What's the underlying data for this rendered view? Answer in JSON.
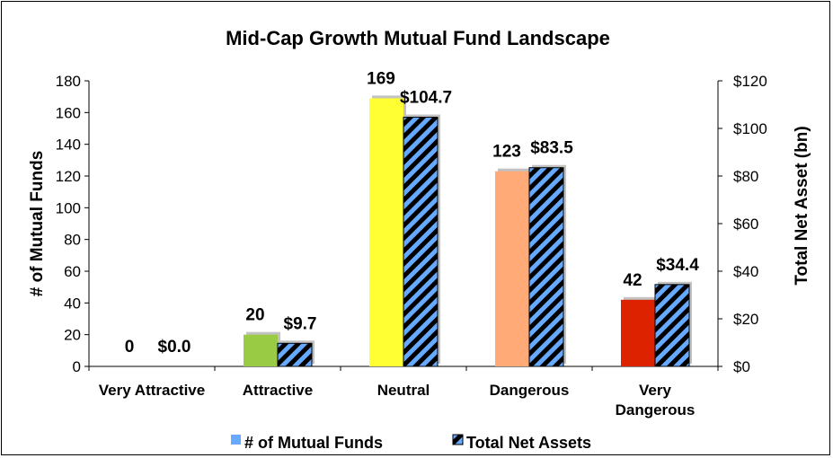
{
  "chart_data": {
    "type": "bar",
    "title": "Mid-Cap Growth Mutual Fund Landscape",
    "categories": [
      [
        "Very Attractive"
      ],
      [
        "Attractive"
      ],
      [
        "Neutral"
      ],
      [
        "Dangerous"
      ],
      [
        "Very",
        "Dangerous"
      ]
    ],
    "ylabel": "# of Mutual Funds",
    "y2label": "Total Net Asset (bn)",
    "ylim": [
      0,
      180
    ],
    "y2lim": [
      0,
      120
    ],
    "yticks": [
      "0",
      "20",
      "40",
      "60",
      "80",
      "100",
      "120",
      "140",
      "160",
      "180"
    ],
    "y2ticks": [
      "$0",
      "$20",
      "$40",
      "$60",
      "$80",
      "$100",
      "$120"
    ],
    "legend_position": "bottom",
    "grid": false,
    "series": [
      {
        "name": "# of Mutual Funds",
        "axis": "left",
        "values": [
          0,
          20,
          169,
          123,
          42
        ],
        "labels": [
          "0",
          "20",
          "169",
          "123",
          "42"
        ],
        "colors": [
          "#c0c0c0",
          "#99cc44",
          "#ffff33",
          "#ffaa77",
          "#dd2200"
        ],
        "legend_color": "#66aaff"
      },
      {
        "name": "Total Net Assets",
        "axis": "right",
        "values": [
          0.0,
          9.7,
          104.7,
          83.5,
          34.4
        ],
        "labels": [
          "$0.0",
          "$9.7",
          "$104.7",
          "$83.5",
          "$34.4"
        ],
        "pattern_colors": [
          "#000000",
          "#66aaff"
        ]
      }
    ]
  }
}
